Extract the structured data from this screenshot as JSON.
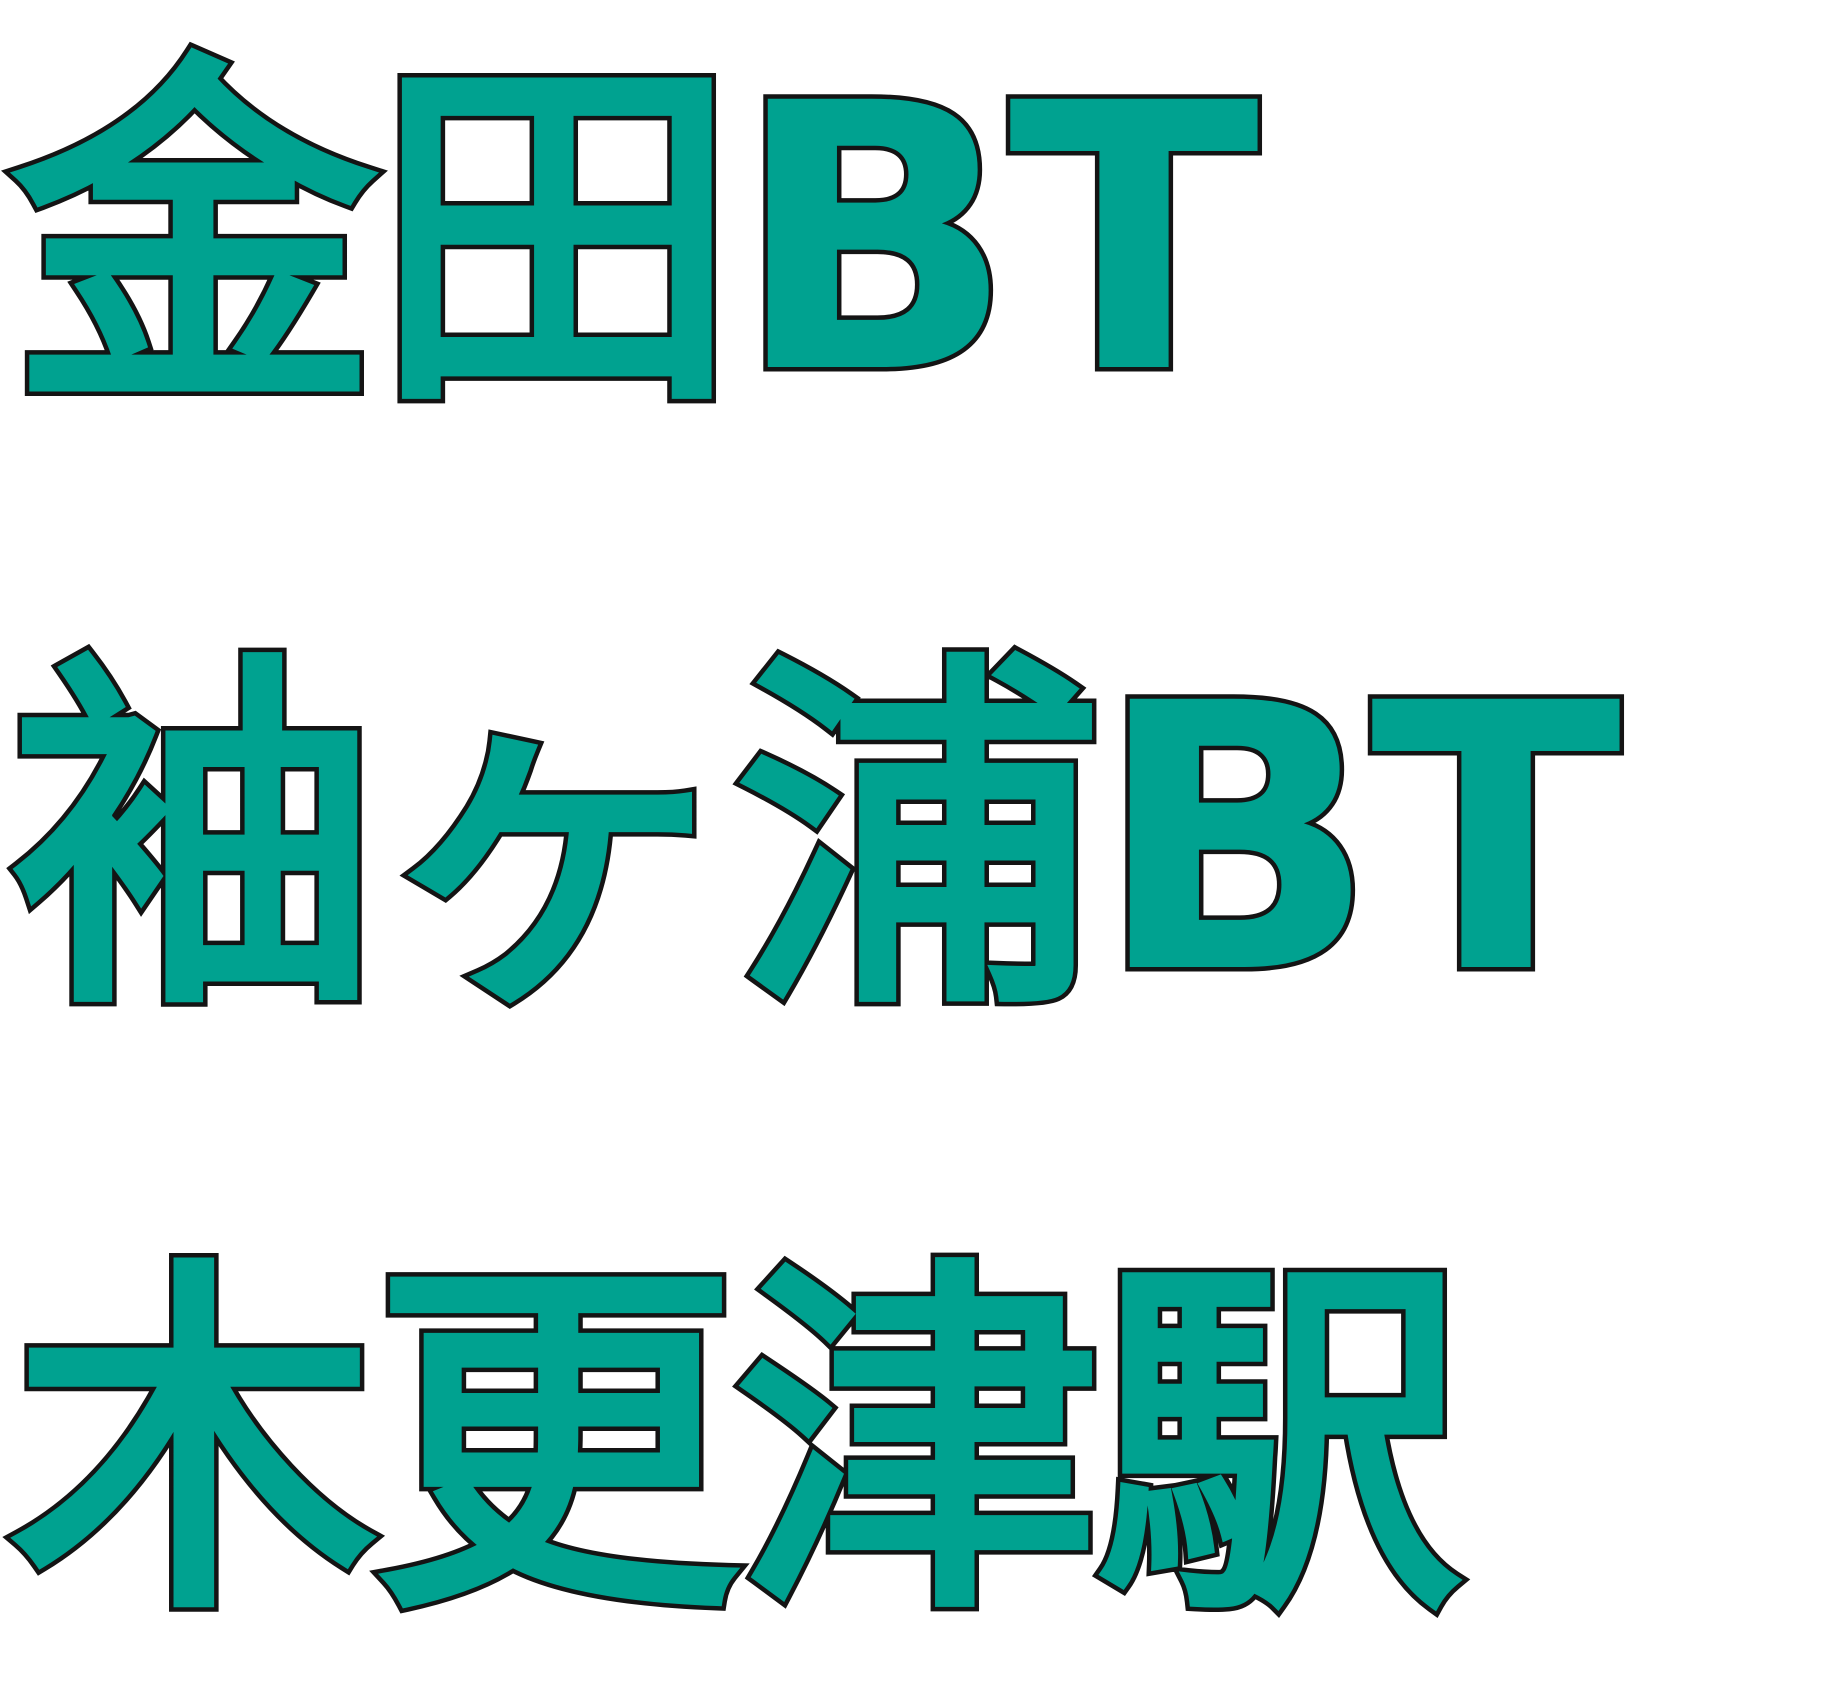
{
  "sign": {
    "lines": [
      "金田BT",
      "袖ヶ浦BT",
      "木更津駅"
    ],
    "text_fill_color": "#00a290",
    "outline_color": "#141414",
    "background_color": "#ffffff"
  }
}
